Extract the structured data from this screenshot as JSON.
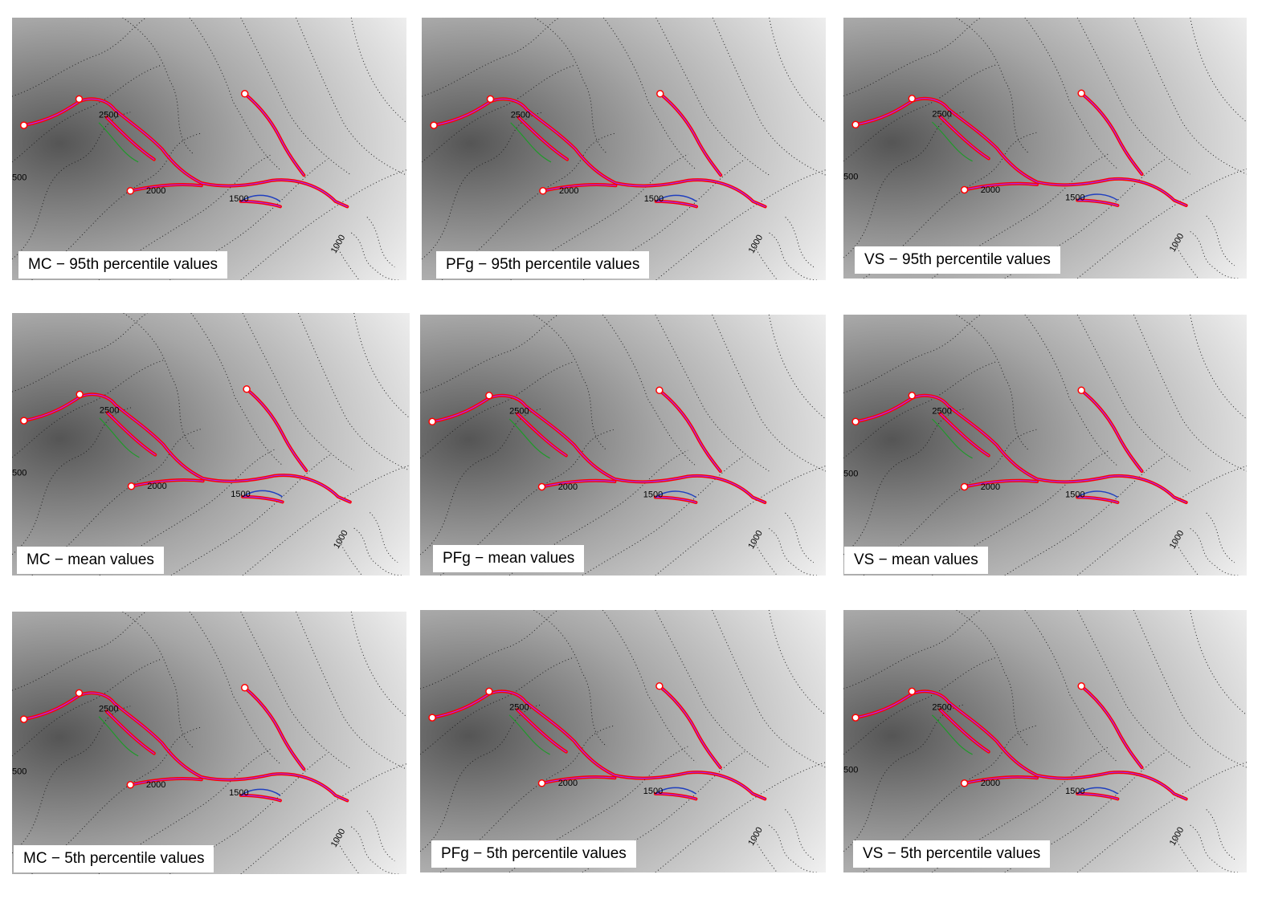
{
  "figure": {
    "panels": [
      {
        "caption": "MC − 95th percentile values",
        "labels": [
          "2500",
          "2000",
          "1500",
          "1000",
          "500"
        ]
      },
      {
        "caption": "PFg − 95th percentile values",
        "labels": [
          "2500",
          "2000",
          "1500",
          "1000"
        ]
      },
      {
        "caption": "VS − 95th percentile values",
        "labels": [
          "2500",
          "2000",
          "1500",
          "1000",
          "500"
        ]
      },
      {
        "caption": "MC − mean values",
        "labels": [
          "2500",
          "2000",
          "1500",
          "1000",
          "500"
        ]
      },
      {
        "caption": "PFg − mean values",
        "labels": [
          "2500",
          "2000",
          "1500",
          "1000"
        ]
      },
      {
        "caption": "VS − mean values",
        "labels": [
          "2500",
          "2000",
          "1500",
          "1000",
          "500"
        ]
      },
      {
        "caption": "MC − 5th percentile values",
        "labels": [
          "2500",
          "2000",
          "1500",
          "1000",
          "500"
        ]
      },
      {
        "caption": "PFg − 5th percentile values",
        "labels": [
          "2500",
          "2000",
          "1500",
          "1000"
        ]
      },
      {
        "caption": "VS − 5th percentile values",
        "labels": [
          "2500",
          "2000",
          "1500",
          "1000",
          "500"
        ]
      }
    ],
    "colors": {
      "flow_outline": "#ff0000",
      "flow_inner": "#9b30ff",
      "alt_outline_blue": "#1f3fbf",
      "alt_outline_green": "#1f9a2a",
      "vent": "#ffffff",
      "contour": "#222222",
      "terrain_dark": "#555555",
      "terrain_light": "#f4f4f4"
    }
  }
}
